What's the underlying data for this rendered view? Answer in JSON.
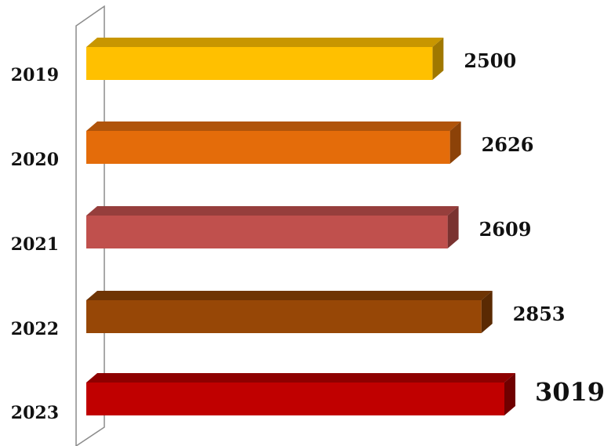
{
  "chart_data": {
    "type": "bar",
    "orientation": "horizontal",
    "three_d": true,
    "categories": [
      "2019",
      "2020",
      "2021",
      "2022",
      "2023"
    ],
    "values": [
      2500,
      2626,
      2609,
      2853,
      3019
    ],
    "data_labels": [
      "2500",
      "2626",
      "2609",
      "2853",
      "3019"
    ],
    "bar_colors": [
      "#FFC000",
      "#E46C0A",
      "#C0504D",
      "#974706",
      "#C00000"
    ],
    "bar_top_colors": [
      "#C89600",
      "#B0540A",
      "#963E3C",
      "#6E3404",
      "#8E0000"
    ],
    "bar_side_colors": [
      "#A07800",
      "#8C4208",
      "#7A3230",
      "#5A2A03",
      "#700000"
    ],
    "xlim": [
      0,
      3019
    ],
    "grid": false,
    "legend": "none",
    "title": "",
    "xlabel": "",
    "ylabel": ""
  }
}
